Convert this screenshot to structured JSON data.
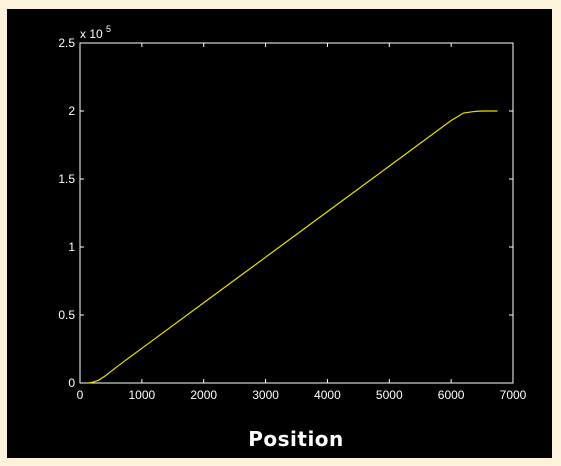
{
  "chart_data": {
    "type": "line",
    "title": "",
    "xlabel": "Position",
    "ylabel": "",
    "xlim": [
      0,
      7000
    ],
    "ylim": [
      0,
      2.5
    ],
    "y_multiplier": {
      "base": "x 10",
      "exponent": "5"
    },
    "x_ticks": [
      0,
      1000,
      2000,
      3000,
      4000,
      5000,
      6000,
      7000
    ],
    "x_tick_labels": [
      "0",
      "1000",
      "2000",
      "3000",
      "4000",
      "5000",
      "6000",
      "7000"
    ],
    "y_ticks": [
      0,
      0.5,
      1,
      1.5,
      2,
      2.5
    ],
    "y_tick_labels": [
      "0",
      "0.5",
      "1",
      "1.5",
      "2",
      "2.5"
    ],
    "grid": false,
    "colors": {
      "background": "#000000",
      "axes": "#ffffff",
      "line": "#e8e000",
      "frame": "#fdf3dc"
    },
    "series": [
      {
        "x": [
          130,
          200,
          300,
          400,
          500,
          600,
          700,
          1000,
          2000,
          3000,
          4000,
          5000,
          6000,
          6200,
          6350,
          6450,
          6550,
          6650,
          6750
        ],
        "values": [
          0,
          0.005,
          0.02,
          0.05,
          0.085,
          0.12,
          0.155,
          0.255,
          0.59,
          0.925,
          1.26,
          1.595,
          1.93,
          1.985,
          1.995,
          1.999,
          2.0,
          2.0,
          2.0
        ]
      }
    ]
  }
}
